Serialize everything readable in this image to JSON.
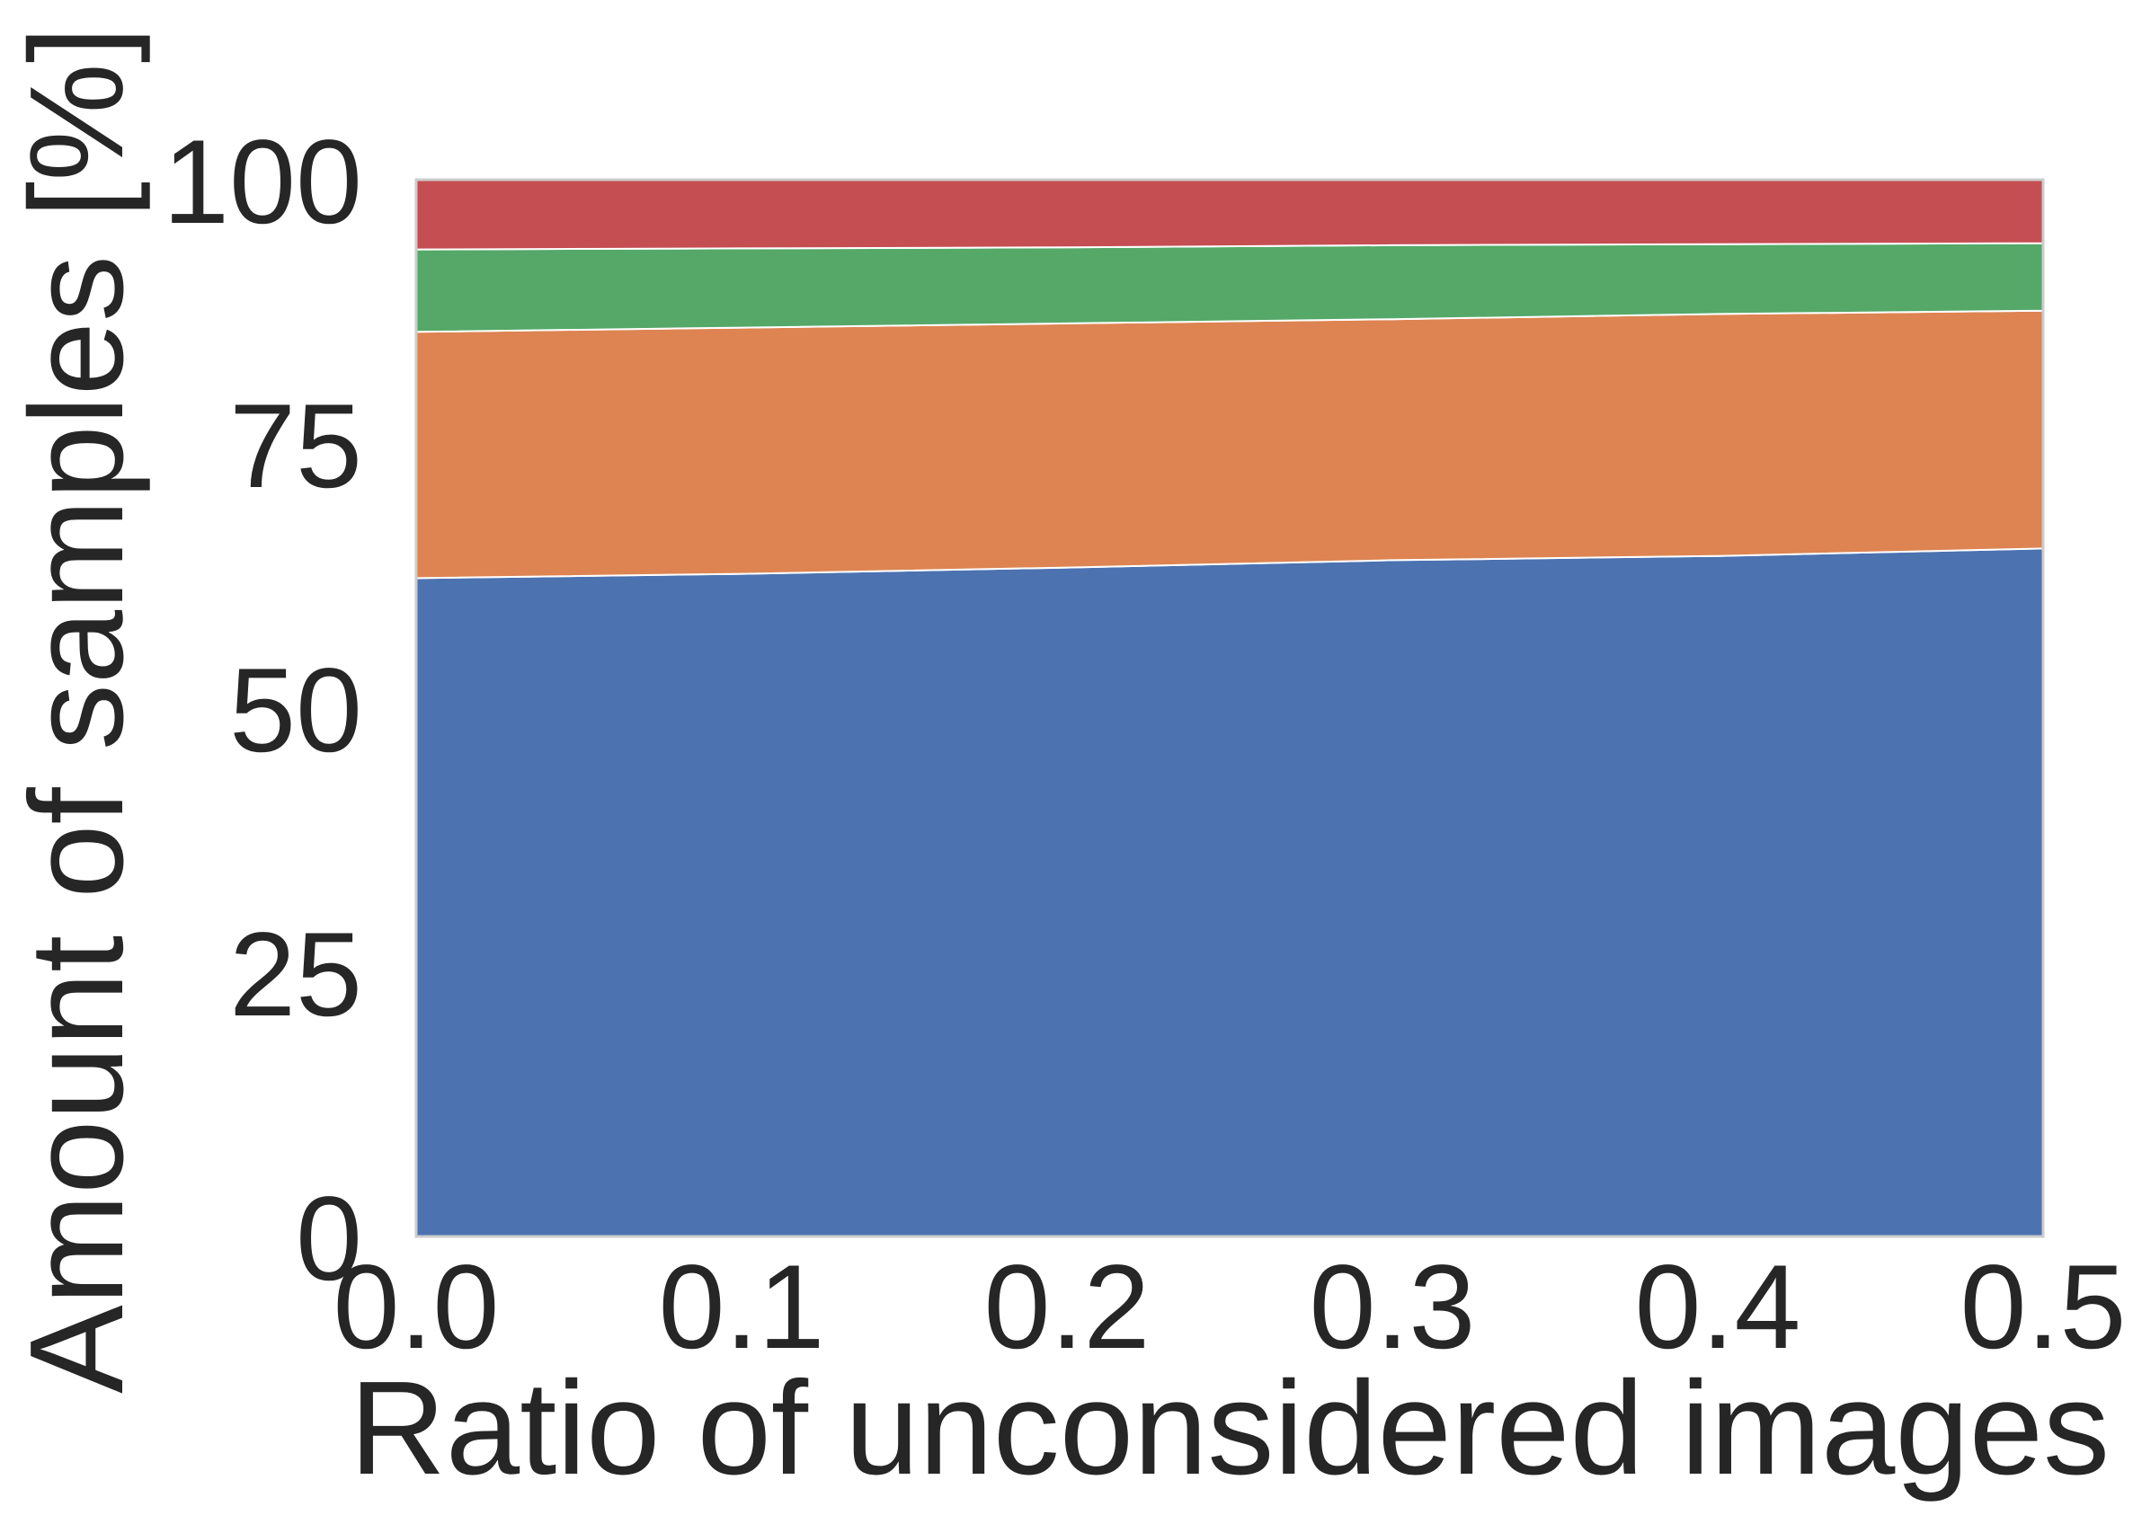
{
  "chart_data": {
    "type": "area",
    "stacked": true,
    "title": "",
    "xlabel": "Ratio of unconsidered images",
    "ylabel": "Amount of samples [%]",
    "xlim": [
      0.0,
      0.5
    ],
    "ylim": [
      0,
      100
    ],
    "grid": false,
    "legend": "none",
    "x": [
      0.0,
      0.1,
      0.2,
      0.3,
      0.4,
      0.5
    ],
    "x_tick_labels": [
      "0.0",
      "0.1",
      "0.2",
      "0.3",
      "0.4",
      "0.5"
    ],
    "y_ticks": [
      0,
      25,
      50,
      75,
      100
    ],
    "y_tick_labels": [
      "0",
      "25",
      "50",
      "75",
      "100"
    ],
    "series": [
      {
        "color": "#4c72b0",
        "values": [
          62.3,
          62.7,
          63.3,
          64.0,
          64.4,
          65.1
        ]
      },
      {
        "color": "#dd8452",
        "values": [
          23.3,
          23.3,
          23.1,
          22.8,
          22.9,
          22.5
        ]
      },
      {
        "color": "#55a868",
        "values": [
          7.8,
          7.5,
          7.2,
          7.0,
          6.6,
          6.4
        ]
      },
      {
        "color": "#c44e52",
        "values": [
          6.6,
          6.5,
          6.4,
          6.2,
          6.1,
          6.0
        ]
      }
    ]
  }
}
